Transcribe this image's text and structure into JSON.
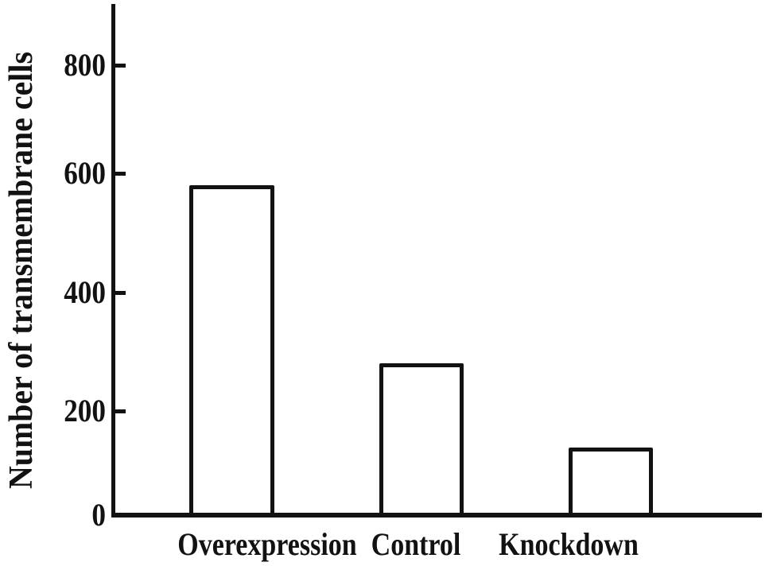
{
  "chart_data": {
    "type": "bar",
    "categories": [
      "Overexpression",
      "Control",
      "Knockdown"
    ],
    "values": [
      580,
      280,
      130
    ],
    "title": "",
    "xlabel": "",
    "ylabel": "Number of transmembrane cells",
    "yticks": [
      0,
      200,
      400,
      600,
      800
    ],
    "ylim": [
      0,
      910
    ],
    "grid": false,
    "legend": "none",
    "bar_fill": "#ffffff",
    "bar_border": "#121212",
    "axis_color": "#121212",
    "background": "#ffffff"
  }
}
